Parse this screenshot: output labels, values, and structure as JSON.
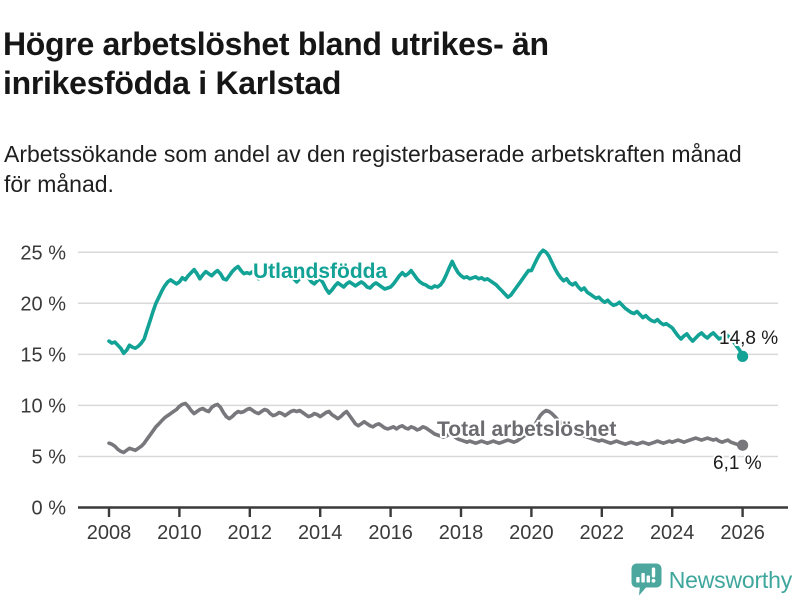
{
  "title": {
    "lines": [
      "Högre arbetslöshet bland utrikes- än",
      "inrikesfödda i Karlstad"
    ]
  },
  "subtitle": {
    "lines": [
      "Arbetssökande som andel av den registerbaserade arbetskraften månad",
      "för månad."
    ]
  },
  "branding": {
    "logo_text": "Newsworthy",
    "logo_icon": "speech-bubble-bar-chart-exclamation",
    "brand_color": "#3ea69c",
    "icon_color": "#4ca79f"
  },
  "chart_data": {
    "type": "line",
    "unit": "%",
    "x_start": "2008-01",
    "x_end": "2026-01",
    "points_per_year": 12,
    "x_ticks": [
      2008,
      2010,
      2012,
      2014,
      2016,
      2018,
      2020,
      2022,
      2024,
      2026
    ],
    "y_ticks": [
      0,
      5,
      10,
      15,
      20,
      25
    ],
    "y_tick_suffix": " %",
    "ylim": [
      0,
      26.5
    ],
    "grid": "horizontal",
    "legend_position": "inline-labels",
    "series": [
      {
        "name": "Utlandsfödda",
        "color": "#12a296",
        "end_value": 14.8,
        "end_label": "14,8 %",
        "values": [
          16.3,
          16.1,
          16.2,
          15.9,
          15.6,
          15.1,
          15.4,
          15.9,
          15.7,
          15.6,
          15.8,
          16.1,
          16.5,
          17.4,
          18.3,
          19.2,
          20.0,
          20.6,
          21.2,
          21.7,
          22.1,
          22.3,
          22.1,
          21.9,
          22.1,
          22.5,
          22.3,
          22.7,
          23.0,
          23.3,
          22.9,
          22.4,
          22.8,
          23.1,
          22.9,
          22.7,
          23.0,
          23.2,
          22.9,
          22.4,
          22.3,
          22.7,
          23.1,
          23.4,
          23.6,
          23.2,
          22.9,
          23.0,
          22.9,
          23.1,
          22.7,
          22.4,
          22.6,
          22.9,
          23.1,
          22.8,
          22.5,
          22.8,
          23.0,
          22.7,
          22.9,
          23.1,
          22.8,
          22.4,
          22.1,
          22.4,
          22.7,
          22.9,
          22.5,
          22.1,
          21.9,
          22.2,
          22.4,
          22.0,
          21.4,
          21.0,
          21.3,
          21.7,
          22.0,
          21.8,
          21.6,
          21.9,
          22.1,
          21.9,
          21.7,
          21.9,
          22.1,
          21.9,
          21.6,
          21.5,
          21.8,
          22.0,
          21.8,
          21.6,
          21.4,
          21.5,
          21.6,
          21.9,
          22.3,
          22.7,
          23.0,
          22.7,
          22.9,
          23.2,
          22.8,
          22.4,
          22.1,
          21.9,
          21.8,
          21.6,
          21.5,
          21.7,
          21.6,
          21.8,
          22.2,
          22.8,
          23.5,
          24.1,
          23.5,
          23.0,
          22.7,
          22.5,
          22.6,
          22.4,
          22.5,
          22.6,
          22.4,
          22.5,
          22.3,
          22.4,
          22.2,
          22.0,
          21.8,
          21.5,
          21.2,
          20.9,
          20.6,
          20.8,
          21.2,
          21.6,
          22.0,
          22.4,
          22.8,
          23.2,
          23.2,
          23.8,
          24.4,
          24.9,
          25.2,
          25.0,
          24.6,
          24.0,
          23.4,
          22.9,
          22.5,
          22.2,
          22.4,
          22.0,
          21.8,
          22.0,
          21.6,
          21.3,
          21.5,
          21.1,
          20.9,
          20.7,
          20.5,
          20.6,
          20.3,
          20.1,
          20.3,
          20.0,
          19.8,
          19.9,
          20.1,
          19.8,
          19.5,
          19.3,
          19.1,
          19.0,
          19.2,
          18.9,
          18.6,
          18.8,
          18.5,
          18.3,
          18.2,
          18.4,
          18.1,
          17.9,
          18.0,
          17.8,
          17.6,
          17.2,
          16.8,
          16.5,
          16.8,
          17.0,
          16.6,
          16.3,
          16.6,
          16.9,
          17.1,
          16.8,
          16.6,
          16.9,
          17.1,
          16.8,
          16.5,
          16.7,
          17.0,
          16.8,
          16.5,
          16.2,
          15.8,
          15.4,
          14.8
        ]
      },
      {
        "name": "Total arbetslöshet",
        "color": "#77777c",
        "end_value": 6.1,
        "end_label": "6,1 %",
        "values": [
          6.3,
          6.2,
          6.0,
          5.7,
          5.5,
          5.4,
          5.6,
          5.8,
          5.7,
          5.6,
          5.8,
          6.0,
          6.3,
          6.7,
          7.1,
          7.5,
          7.9,
          8.2,
          8.5,
          8.8,
          9.0,
          9.2,
          9.4,
          9.6,
          9.9,
          10.1,
          10.2,
          9.9,
          9.5,
          9.2,
          9.4,
          9.6,
          9.7,
          9.5,
          9.4,
          9.8,
          10.0,
          10.1,
          9.8,
          9.3,
          8.9,
          8.7,
          8.9,
          9.2,
          9.4,
          9.3,
          9.4,
          9.6,
          9.7,
          9.5,
          9.3,
          9.2,
          9.4,
          9.6,
          9.5,
          9.2,
          9.0,
          9.1,
          9.3,
          9.2,
          9.0,
          9.2,
          9.4,
          9.5,
          9.4,
          9.5,
          9.3,
          9.1,
          8.9,
          9.0,
          9.2,
          9.1,
          8.9,
          9.1,
          9.3,
          9.4,
          9.1,
          8.9,
          8.7,
          8.9,
          9.2,
          9.4,
          9.0,
          8.6,
          8.2,
          8.0,
          8.2,
          8.4,
          8.2,
          8.0,
          7.9,
          8.1,
          8.2,
          8.0,
          7.8,
          7.7,
          7.8,
          7.9,
          7.7,
          7.9,
          8.0,
          7.8,
          7.7,
          7.9,
          7.8,
          7.6,
          7.7,
          7.9,
          7.8,
          7.6,
          7.4,
          7.2,
          7.1,
          7.0,
          6.9,
          7.0,
          7.2,
          7.1,
          6.9,
          6.7,
          6.6,
          6.5,
          6.4,
          6.5,
          6.4,
          6.3,
          6.4,
          6.5,
          6.4,
          6.3,
          6.4,
          6.5,
          6.4,
          6.3,
          6.4,
          6.5,
          6.6,
          6.5,
          6.4,
          6.5,
          6.7,
          6.9,
          7.1,
          7.3,
          7.6,
          8.0,
          8.5,
          9.0,
          9.3,
          9.5,
          9.4,
          9.2,
          8.9,
          8.6,
          8.3,
          8.1,
          8.3,
          8.0,
          7.7,
          7.5,
          7.3,
          7.1,
          7.0,
          6.9,
          6.8,
          6.7,
          6.6,
          6.5,
          6.6,
          6.5,
          6.4,
          6.3,
          6.4,
          6.5,
          6.4,
          6.3,
          6.2,
          6.3,
          6.4,
          6.3,
          6.2,
          6.3,
          6.4,
          6.3,
          6.2,
          6.3,
          6.4,
          6.5,
          6.4,
          6.3,
          6.4,
          6.5,
          6.4,
          6.5,
          6.6,
          6.5,
          6.4,
          6.5,
          6.6,
          6.7,
          6.8,
          6.7,
          6.6,
          6.7,
          6.8,
          6.7,
          6.6,
          6.7,
          6.5,
          6.4,
          6.5,
          6.6,
          6.4,
          6.3,
          6.2,
          6.1,
          6.1
        ]
      }
    ]
  }
}
